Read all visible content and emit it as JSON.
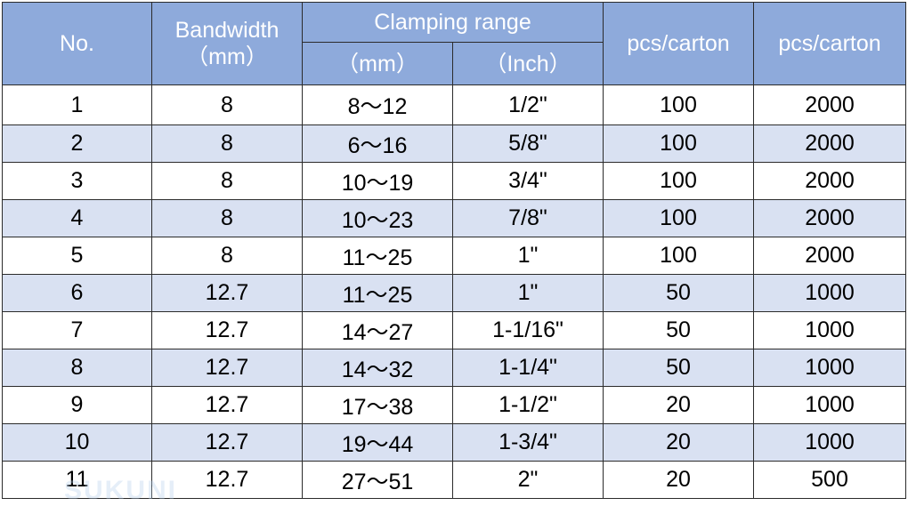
{
  "table": {
    "headers": {
      "no": "No.",
      "bandwidth": "Bandwidth",
      "bandwidth_unit": "（mm）",
      "clamping_range": "Clamping range",
      "clamping_mm": "（mm）",
      "clamping_inch": "（Inch）",
      "pcs_carton_1": "pcs/carton",
      "pcs_carton_2": "pcs/carton"
    },
    "rows": [
      {
        "no": "1",
        "bandwidth": "8",
        "range_mm": "8～12",
        "range_inch": "1/2\"",
        "pcs1": "100",
        "pcs2": "2000"
      },
      {
        "no": "2",
        "bandwidth": "8",
        "range_mm": "6～16",
        "range_inch": "5/8\"",
        "pcs1": "100",
        "pcs2": "2000"
      },
      {
        "no": "3",
        "bandwidth": "8",
        "range_mm": "10～19",
        "range_inch": "3/4\"",
        "pcs1": "100",
        "pcs2": "2000"
      },
      {
        "no": "4",
        "bandwidth": "8",
        "range_mm": "10～23",
        "range_inch": "7/8\"",
        "pcs1": "100",
        "pcs2": "2000"
      },
      {
        "no": "5",
        "bandwidth": "8",
        "range_mm": "11～25",
        "range_inch": "1\"",
        "pcs1": "100",
        "pcs2": "2000"
      },
      {
        "no": "6",
        "bandwidth": "12.7",
        "range_mm": "11～25",
        "range_inch": "1\"",
        "pcs1": "50",
        "pcs2": "1000"
      },
      {
        "no": "7",
        "bandwidth": "12.7",
        "range_mm": "14～27",
        "range_inch": "1-1/16\"",
        "pcs1": "50",
        "pcs2": "1000"
      },
      {
        "no": "8",
        "bandwidth": "12.7",
        "range_mm": "14～32",
        "range_inch": "1-1/4\"",
        "pcs1": "50",
        "pcs2": "1000"
      },
      {
        "no": "9",
        "bandwidth": "12.7",
        "range_mm": "17～38",
        "range_inch": "1-1/2\"",
        "pcs1": "20",
        "pcs2": "1000"
      },
      {
        "no": "10",
        "bandwidth": "12.7",
        "range_mm": "19～44",
        "range_inch": "1-3/4\"",
        "pcs1": "20",
        "pcs2": "1000"
      },
      {
        "no": "11",
        "bandwidth": "12.7",
        "range_mm": "27～51",
        "range_inch": "2\"",
        "pcs1": "20",
        "pcs2": "500"
      }
    ]
  },
  "watermark": "SUKUNI",
  "colors": {
    "header_bg": "#8eaadb",
    "header_text": "#ffffff",
    "alt_row_bg": "#d9e1f2",
    "row_bg": "#ffffff",
    "border": "#2b2b2b"
  }
}
